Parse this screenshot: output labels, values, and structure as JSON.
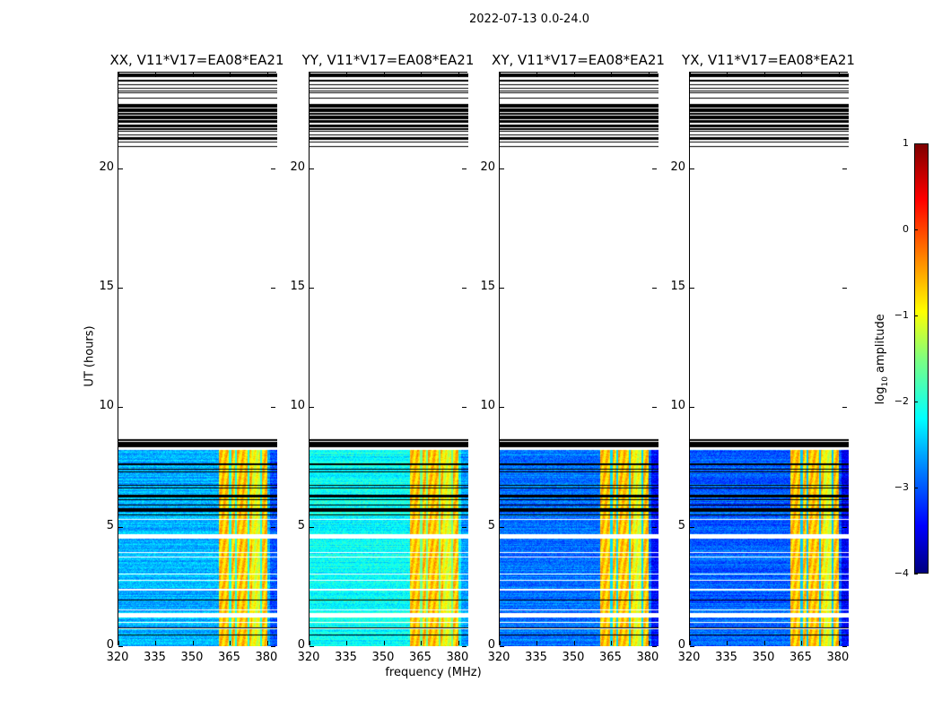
{
  "chart_data": {
    "type": "heatmap",
    "suptitle": "2022-07-13 0.0-24.0",
    "panels": [
      {
        "title": "XX, V11*V17=EA08*EA21",
        "background_level": -2.5
      },
      {
        "title": "YY, V11*V17=EA08*EA21",
        "background_level": -2.1
      },
      {
        "title": "XY, V11*V17=EA08*EA21",
        "background_level": -2.8
      },
      {
        "title": "YX, V11*V17=EA08*EA21",
        "background_level": -2.9
      }
    ],
    "xlabel": "frequency (MHz)",
    "ylabel": "UT (hours)",
    "xlim": [
      320,
      384
    ],
    "ylim": [
      0,
      24
    ],
    "xticks": [
      320,
      335,
      350,
      365,
      380
    ],
    "yticks": [
      0,
      5,
      10,
      15,
      20
    ],
    "data_intervals_hours": [
      [
        0,
        8.7
      ],
      [
        20.8,
        24
      ]
    ],
    "rfi_band_mhz": [
      360.5,
      380
    ],
    "rfi_level": -0.6,
    "colorbar": {
      "label_prefix": "log",
      "label_sub": "10",
      "label_suffix": " amplitude",
      "range": [
        -4,
        1
      ],
      "ticks": [
        "1",
        "0",
        "−1",
        "−2",
        "−3",
        "−4"
      ],
      "colormap": "jet"
    }
  }
}
